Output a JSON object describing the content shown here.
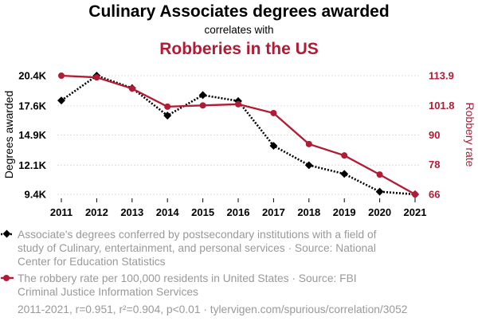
{
  "header": {
    "title": "Culinary Associates degrees awarded",
    "subtitle": "correlates with",
    "title2": "Robberies in the US"
  },
  "colors": {
    "series1": "#000000",
    "series2": "#b31b34",
    "muted": "#999999",
    "grid": "#dddddd"
  },
  "chart_data": {
    "type": "line",
    "x": [
      2011,
      2012,
      2013,
      2014,
      2015,
      2016,
      2017,
      2018,
      2019,
      2020,
      2021
    ],
    "xticks": [
      "2011",
      "2012",
      "2013",
      "2014",
      "2015",
      "2016",
      "2017",
      "2018",
      "2019",
      "2020",
      "2021"
    ],
    "left_axis": {
      "label": "Degrees awarded",
      "ticks": [
        "20.4K",
        "17.6K",
        "14.9K",
        "12.1K",
        "9.4K"
      ],
      "tick_values": [
        20400,
        17600,
        14900,
        12100,
        9400
      ],
      "ylim": [
        9400,
        20400
      ]
    },
    "right_axis": {
      "label": "Robbery rate",
      "ticks": [
        "113.9",
        "101.8",
        "90",
        "78",
        "66"
      ],
      "tick_values": [
        113.9,
        101.8,
        90,
        78,
        66
      ],
      "ylim": [
        66,
        113.9
      ]
    },
    "series": [
      {
        "axis": "left",
        "style": "dotted",
        "marker": "diamond",
        "values": [
          18100,
          20400,
          19250,
          16700,
          18600,
          18050,
          13900,
          12100,
          11300,
          9650,
          9400
        ]
      },
      {
        "axis": "right",
        "style": "solid",
        "marker": "circle",
        "values": [
          113.9,
          113.2,
          108.7,
          101.4,
          101.9,
          102.4,
          98.8,
          86.3,
          81.7,
          74.0,
          66.0
        ]
      }
    ],
    "grid": true
  },
  "legend": [
    {
      "lines": [
        "Associate's degrees conferred by postsecondary institutions with a field of",
        "study of Culinary, entertainment, and personal services · Source: National",
        "Center for Education Statistics"
      ]
    },
    {
      "lines": [
        "The robbery rate per 100,000 residents in United States · Source: FBI",
        "Criminal Justice Information Services"
      ]
    }
  ],
  "footer": "2011-2021, r=0.951, r²=0.904, p<0.01 · tylervigen.com/spurious/correlation/3052"
}
